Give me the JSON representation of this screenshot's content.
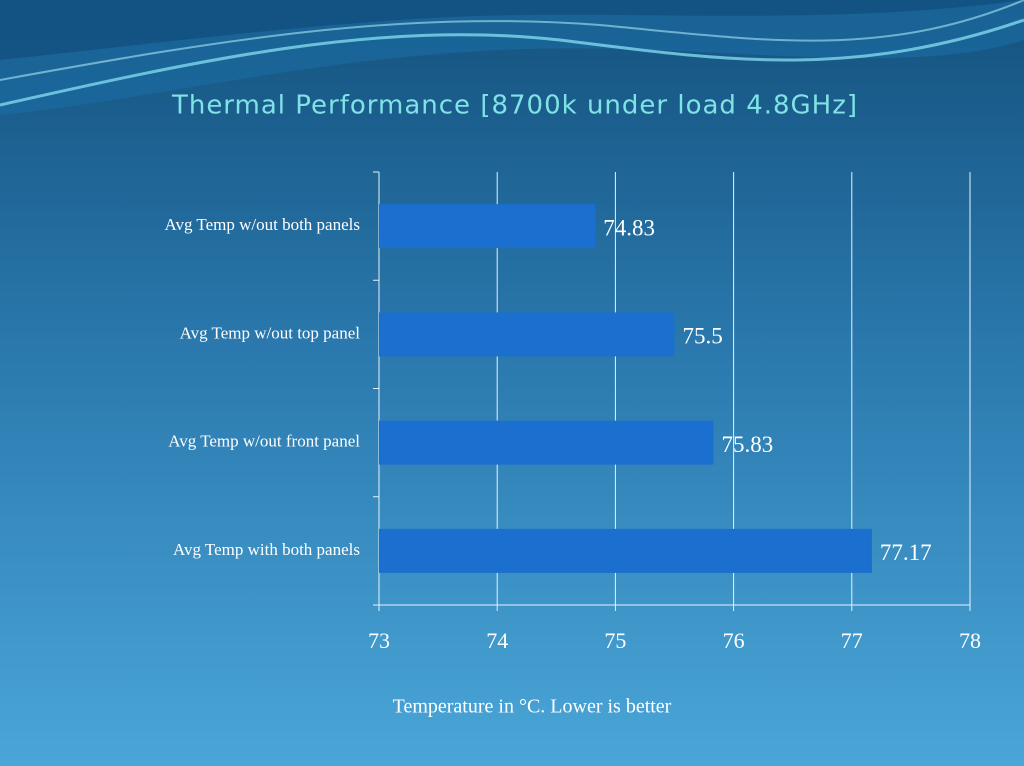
{
  "chart_data": {
    "type": "bar",
    "orientation": "horizontal",
    "title": "Thermal Performance [8700k under load 4.8GHz]",
    "categories": [
      "Avg Temp w/out both panels",
      "Avg Temp w/out top panel",
      "Avg Temp w/out front panel",
      "Avg Temp with both panels"
    ],
    "values": [
      74.83,
      75.5,
      75.83,
      77.17
    ],
    "color": "#1a6fcf",
    "xlim": [
      73,
      78
    ],
    "xticks": [
      73,
      74,
      75,
      76,
      77,
      78
    ],
    "xlabel": "Temperature in °C. Lower is better",
    "grid": true
  }
}
